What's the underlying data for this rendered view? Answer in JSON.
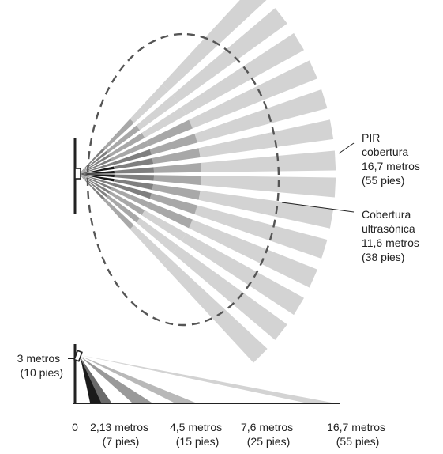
{
  "colors": {
    "beam_light": "#d3d3d3",
    "beam_mid": "#a8a8a8",
    "beam_dark": "#7f7f7f",
    "beam_black": "#1a1a1a",
    "ultrasonic_outline": "#555555",
    "line": "#222222"
  },
  "top_view": {
    "pir_label": [
      "PIR",
      "cobertura",
      "16,7 metros",
      "(55 pies)"
    ],
    "ultrasonic_label": [
      "Cobertura",
      "ultrasónica",
      "11,6 metros",
      "(38 pies)"
    ]
  },
  "side_view": {
    "height_label": [
      "3 metros",
      "(10 pies)"
    ],
    "distance_ticks": [
      {
        "value": "0",
        "sub": ""
      },
      {
        "value": "2,13 metros",
        "sub": "(7 pies)"
      },
      {
        "value": "4,5 metros",
        "sub": "(15 pies)"
      },
      {
        "value": "7,6 metros",
        "sub": "(25 pies)"
      },
      {
        "value": "16,7 metros",
        "sub": "(55 pies)"
      }
    ]
  }
}
